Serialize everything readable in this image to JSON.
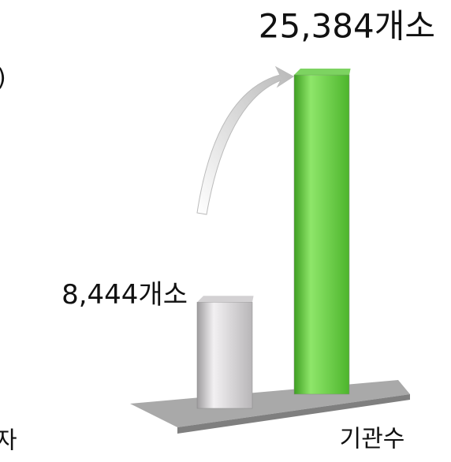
{
  "chart_data": {
    "type": "bar",
    "categories": [
      null,
      null
    ],
    "values": [
      8444,
      25384
    ],
    "value_labels": [
      "8,444개소",
      "25,384개소"
    ],
    "colors": [
      "#c8c6c8",
      "#5cc83a"
    ],
    "x_label": "기관수",
    "annotations": [
      ")",
      "자"
    ]
  }
}
